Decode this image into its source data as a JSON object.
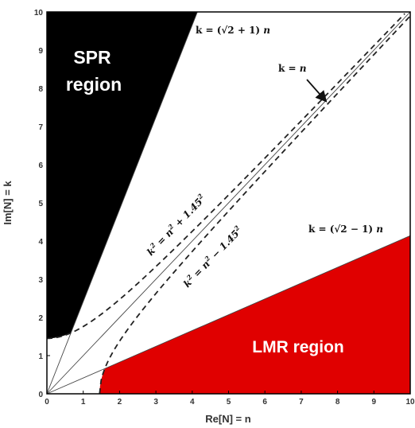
{
  "chart_data": {
    "type": "line",
    "xlabel": "Re[N] = n",
    "ylabel": "Im[N] = k",
    "xlim": [
      0,
      10
    ],
    "ylim": [
      0,
      10
    ],
    "x_ticks": [
      "0",
      "1",
      "2",
      "3",
      "4",
      "5",
      "6",
      "7",
      "8",
      "9",
      "10"
    ],
    "y_ticks": [
      "0",
      "1",
      "2",
      "3",
      "4",
      "5",
      "6",
      "7",
      "8",
      "9",
      "10"
    ],
    "constant": 1.45,
    "regions": [
      {
        "label_lines": [
          "SPR",
          "region"
        ],
        "color": "#000000",
        "bounded_by": "k = (√2 + 1) n and k² = n² + 1.45²"
      },
      {
        "label_lines": [
          "LMR region"
        ],
        "color": "#e00000",
        "bounded_by": "k = (√2 − 1) n and k² = n² − 1.45²"
      }
    ],
    "series": [
      {
        "style": "solid",
        "formula": "k = (√2 + 1) n",
        "slope": 2.414
      },
      {
        "style": "solid",
        "formula": "k = n",
        "slope": 1
      },
      {
        "style": "solid",
        "formula": "k = (√2 − 1) n",
        "slope": 0.414
      },
      {
        "style": "dashed",
        "formula": "k² = n² + 1.45²"
      },
      {
        "style": "dashed",
        "formula": "k² = n² − 1.45²"
      }
    ],
    "annotations": {
      "upper_line": {
        "lhs": "k = (",
        "root": "√2",
        "op": " + 1)",
        "var": " n"
      },
      "diag_line": {
        "lhs": "k = ",
        "var": "n"
      },
      "lower_line": {
        "lhs": "k = (",
        "root": "√2",
        "op": " − 1)",
        "var": " n"
      },
      "hyp_plus": {
        "lhs": "k",
        "sup": "2",
        "mid": " = n",
        "sup2": "2",
        "rest": " + 1.45",
        "sup3": "2"
      },
      "hyp_minus": {
        "lhs": "k",
        "sup": "2",
        "mid": " = n",
        "sup2": "2",
        "rest": " − 1.45",
        "sup3": "2"
      }
    },
    "grid": false,
    "colors": {
      "spr": "#000000",
      "lmr": "#e00000",
      "lines": "#222222",
      "axes": "#000000"
    }
  }
}
